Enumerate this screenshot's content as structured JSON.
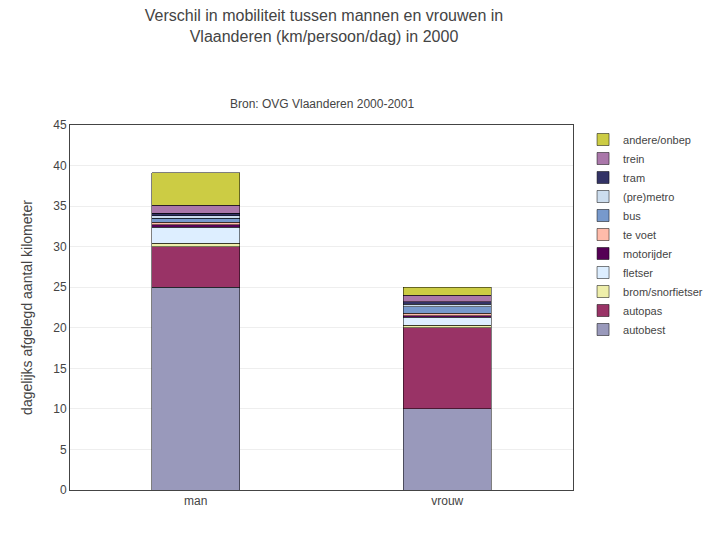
{
  "chart_data": {
    "type": "bar",
    "stacked": true,
    "title": "Verschil in mobiliteit tussen mannen en vrouwen in\nVlaanderen (km/persoon/dag) in 2000",
    "subtitle": "Bron: OVG Vlaanderen 2000-2001",
    "ylabel": "dagelijks afgelegd aantal kilometer",
    "categories": [
      "man",
      "vrouw"
    ],
    "series": [
      {
        "name": "autobest",
        "values": [
          25.0,
          10.0
        ],
        "color": "#9999BB"
      },
      {
        "name": "autopas",
        "values": [
          5.0,
          10.0
        ],
        "color": "#993366"
      },
      {
        "name": "brom/snorfietser",
        "values": [
          0.4,
          0.3
        ],
        "color": "#EEEEAA"
      },
      {
        "name": "fletser",
        "values": [
          2.0,
          1.0
        ],
        "color": "#DDEEFF"
      },
      {
        "name": "motorijder",
        "values": [
          0.3,
          0.2
        ],
        "color": "#550055"
      },
      {
        "name": "te voet",
        "values": [
          0.3,
          0.3
        ],
        "color": "#FFBBAA"
      },
      {
        "name": "bus",
        "values": [
          0.5,
          0.8
        ],
        "color": "#7799CC"
      },
      {
        "name": "(pre)metro",
        "values": [
          0.3,
          0.3
        ],
        "color": "#CCDDEE"
      },
      {
        "name": "tram",
        "values": [
          0.3,
          0.3
        ],
        "color": "#333366"
      },
      {
        "name": "trein",
        "values": [
          1.0,
          0.8
        ],
        "color": "#AA77AA"
      },
      {
        "name": "andere/onbep",
        "values": [
          4.0,
          1.0
        ],
        "color": "#CCCC44"
      }
    ],
    "ylim": [
      0,
      45
    ],
    "yticks": [
      0,
      5,
      10,
      15,
      20,
      25,
      30,
      35,
      40,
      45
    ],
    "grid": true,
    "legend": "upper right"
  }
}
